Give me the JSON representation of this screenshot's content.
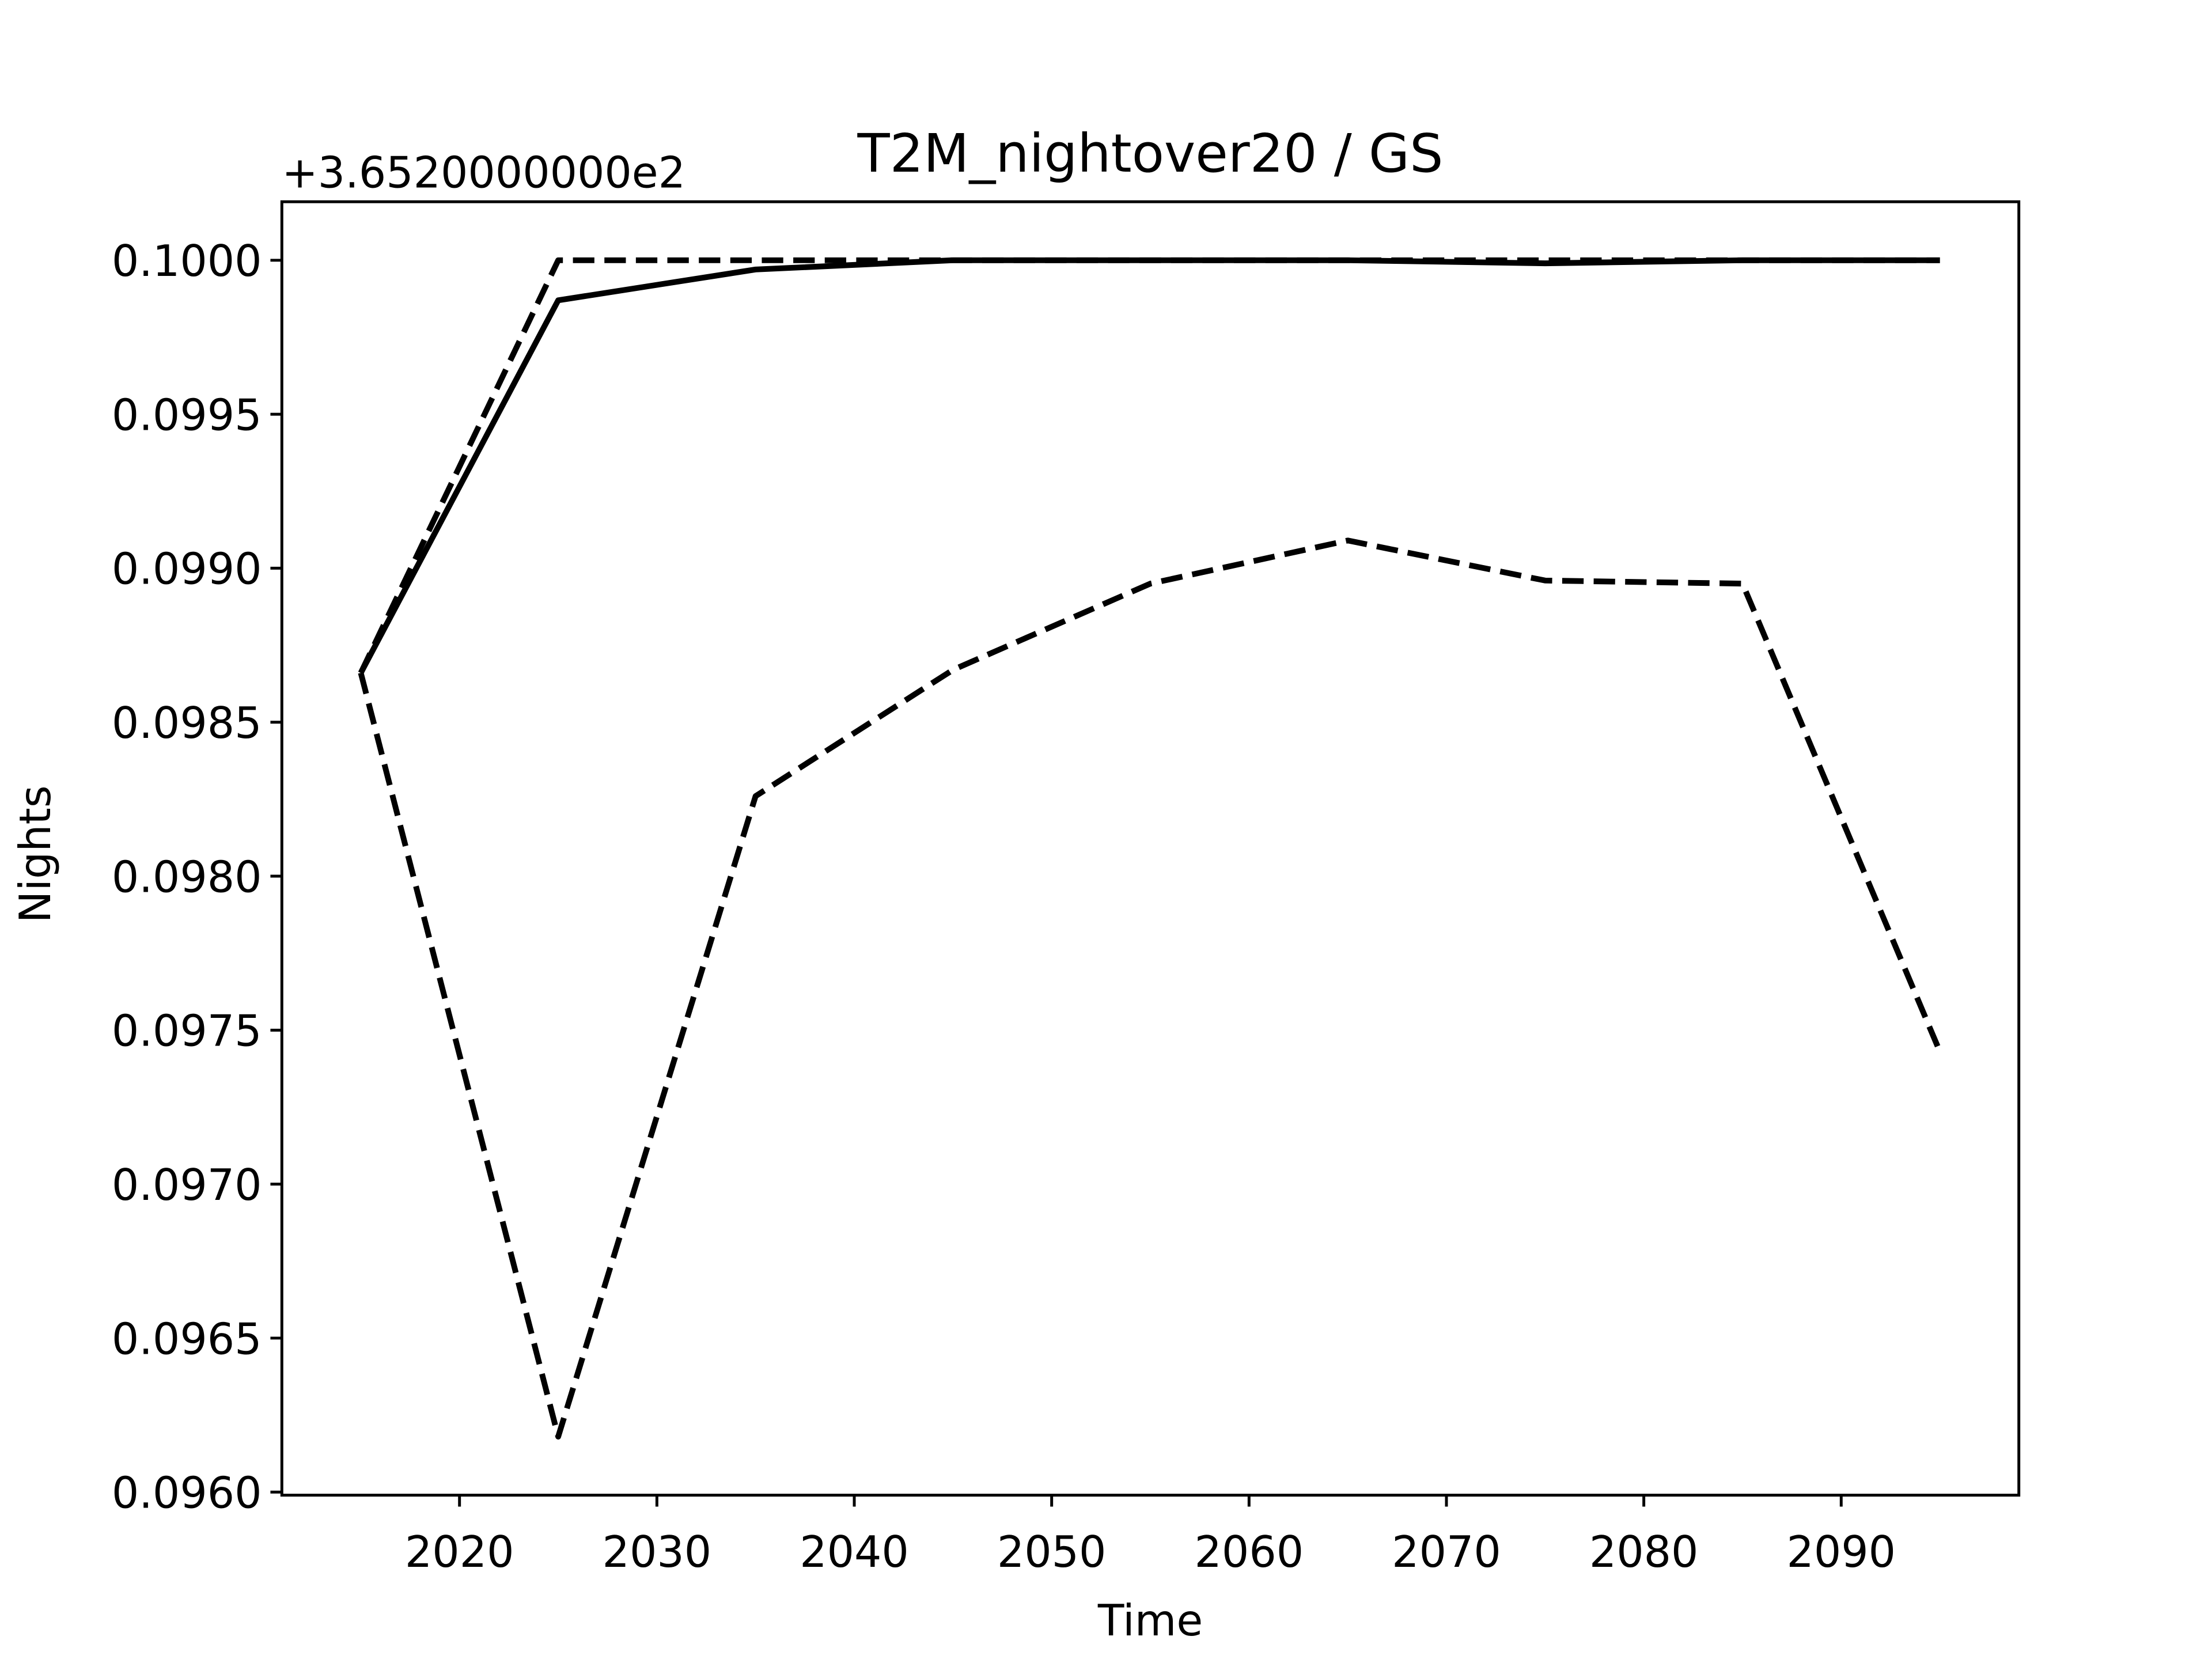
{
  "chart_data": {
    "type": "line",
    "title": "T2M_nightover20 / GS",
    "xlabel": "Time",
    "ylabel": "Nights",
    "y_offset_label": "+3.6520000000e2",
    "x": [
      2015,
      2025,
      2035,
      2045,
      2055,
      2065,
      2075,
      2085,
      2095
    ],
    "series": [
      {
        "color": "#000000",
        "linestyle": "solid",
        "values": [
          0.09866,
          0.09987,
          0.09997,
          0.1,
          0.1,
          0.1,
          0.09999,
          0.1,
          0.1
        ]
      },
      {
        "color": "#000000",
        "linestyle": "dashed",
        "values": [
          0.09866,
          0.1,
          0.1,
          0.1,
          0.1,
          0.1,
          0.1,
          0.1,
          0.1
        ]
      },
      {
        "color": "#000000",
        "linestyle": "dashed",
        "values": [
          0.09866,
          0.09618,
          0.09826,
          0.09867,
          0.09895,
          0.09909,
          0.09896,
          0.09895,
          0.09743
        ]
      }
    ],
    "xlim": [
      2011,
      2099
    ],
    "xticks": [
      2020,
      2030,
      2040,
      2050,
      2060,
      2070,
      2080,
      2090
    ],
    "ylim": [
      0.09599,
      0.10019
    ],
    "yticks": [
      {
        "value": 0.096,
        "label": "0.0960"
      },
      0.0965,
      {
        "value": 0.097,
        "label": "0.0970"
      },
      0.0975,
      {
        "value": 0.098,
        "label": "0.0980"
      },
      0.0985,
      {
        "value": 0.099,
        "label": "0.0990"
      },
      0.0995,
      {
        "value": 0.1,
        "label": "0.1000"
      }
    ],
    "grid": false
  }
}
